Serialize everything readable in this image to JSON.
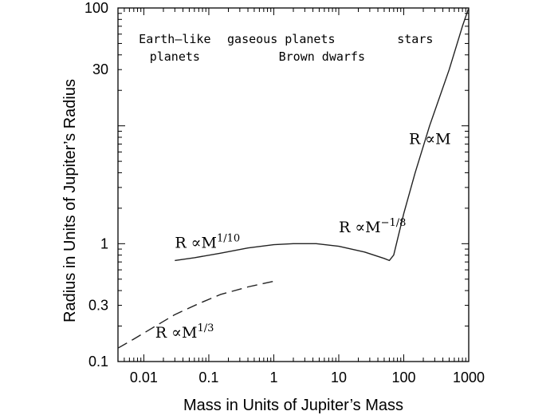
{
  "chart_data": {
    "type": "line",
    "title": "",
    "xlabel": "Mass in Units of Jupiter’s Mass",
    "ylabel": "Radius in Units of Jupiter’s Radius",
    "xscale": "log",
    "yscale": "log",
    "xlim": [
      0.004,
      1000
    ],
    "ylim": [
      0.1,
      100
    ],
    "grid": false,
    "x_ticks": [
      {
        "value": 0.01,
        "label": "0.01"
      },
      {
        "value": 0.1,
        "label": "0.1"
      },
      {
        "value": 1,
        "label": "1"
      },
      {
        "value": 10,
        "label": "10"
      },
      {
        "value": 100,
        "label": "100"
      },
      {
        "value": 1000,
        "label": "1000"
      }
    ],
    "y_ticks": [
      {
        "value": 0.1,
        "label": "0.1"
      },
      {
        "value": 0.3,
        "label": "0.3"
      },
      {
        "value": 1,
        "label": "1"
      },
      {
        "value": 30,
        "label": "30"
      },
      {
        "value": 100,
        "label": "100"
      }
    ],
    "series": [
      {
        "style": "dashed",
        "x": [
          0.004,
          0.007,
          0.013,
          0.03,
          0.07,
          0.15,
          0.4,
          1.0
        ],
        "y": [
          0.13,
          0.155,
          0.19,
          0.25,
          0.31,
          0.37,
          0.43,
          0.48
        ]
      },
      {
        "style": "solid",
        "x": [
          0.03,
          0.06,
          0.15,
          0.4,
          1.0,
          2.0,
          4.5,
          10,
          25,
          50,
          60,
          70,
          100,
          150,
          250,
          500,
          800,
          1000
        ],
        "y": [
          0.72,
          0.76,
          0.83,
          0.92,
          0.98,
          1.0,
          1.0,
          0.95,
          0.85,
          0.75,
          0.72,
          0.8,
          1.8,
          4.0,
          10,
          30,
          70,
          100
        ]
      }
    ],
    "region_labels": [
      {
        "lines": [
          "Earth–like",
          "planets"
        ],
        "x": 0.03
      },
      {
        "lines": [
          "gaseous planets"
        ],
        "x": 1.3
      },
      {
        "lines": [
          "Brown dwarfs"
        ],
        "x": 5.5
      },
      {
        "lines": [
          "stars"
        ],
        "x": 150
      }
    ],
    "annotations": [
      {
        "base": "R ∝M",
        "sup": "1/10",
        "x": 0.03,
        "y": 0.92
      },
      {
        "base": "R ∝M",
        "sup": "−1/8",
        "x": 10,
        "y": 1.25
      },
      {
        "base": "R ∝M",
        "sup": "",
        "x": 120,
        "y": 7
      },
      {
        "base": "R ∝M",
        "sup": "1/3",
        "x": 0.015,
        "y": 0.16
      }
    ]
  }
}
